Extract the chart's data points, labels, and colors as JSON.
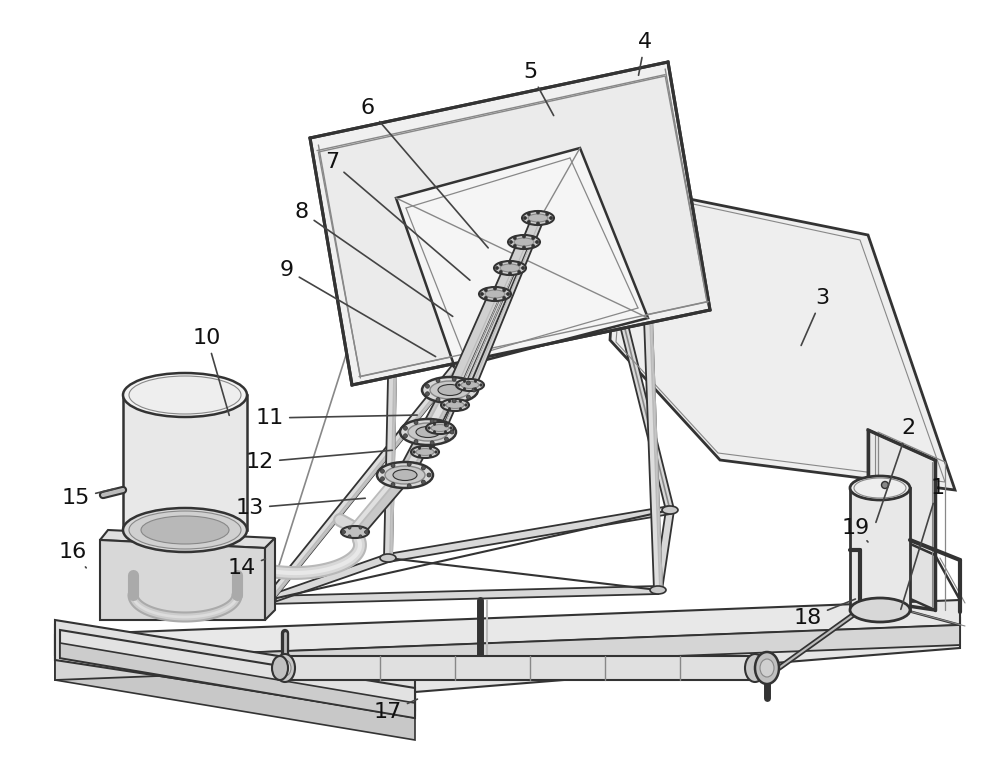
{
  "bg_color": "#ffffff",
  "lc": "#555555",
  "lc_dark": "#333333",
  "lc_light": "#888888",
  "lc_lighter": "#bbbbbb",
  "label_fontsize": 16,
  "label_color": "#111111",
  "label_arrow_color": "#444444",
  "labels": {
    "1": [
      938,
      488,
      900,
      612
    ],
    "2": [
      908,
      428,
      875,
      525
    ],
    "3": [
      822,
      298,
      800,
      348
    ],
    "4": [
      645,
      42,
      638,
      78
    ],
    "5": [
      530,
      72,
      555,
      118
    ],
    "6": [
      368,
      108,
      490,
      250
    ],
    "7": [
      332,
      162,
      472,
      282
    ],
    "8": [
      302,
      212,
      455,
      318
    ],
    "9": [
      287,
      270,
      438,
      358
    ],
    "10": [
      207,
      338,
      230,
      418
    ],
    "11": [
      270,
      418,
      420,
      415
    ],
    "12": [
      260,
      462,
      395,
      450
    ],
    "13": [
      250,
      508,
      368,
      498
    ],
    "14": [
      242,
      568,
      268,
      558
    ],
    "15": [
      76,
      498,
      118,
      488
    ],
    "16": [
      73,
      552,
      88,
      570
    ],
    "17": [
      388,
      712,
      420,
      698
    ],
    "18": [
      808,
      618,
      858,
      598
    ],
    "19": [
      856,
      528,
      868,
      542
    ]
  }
}
